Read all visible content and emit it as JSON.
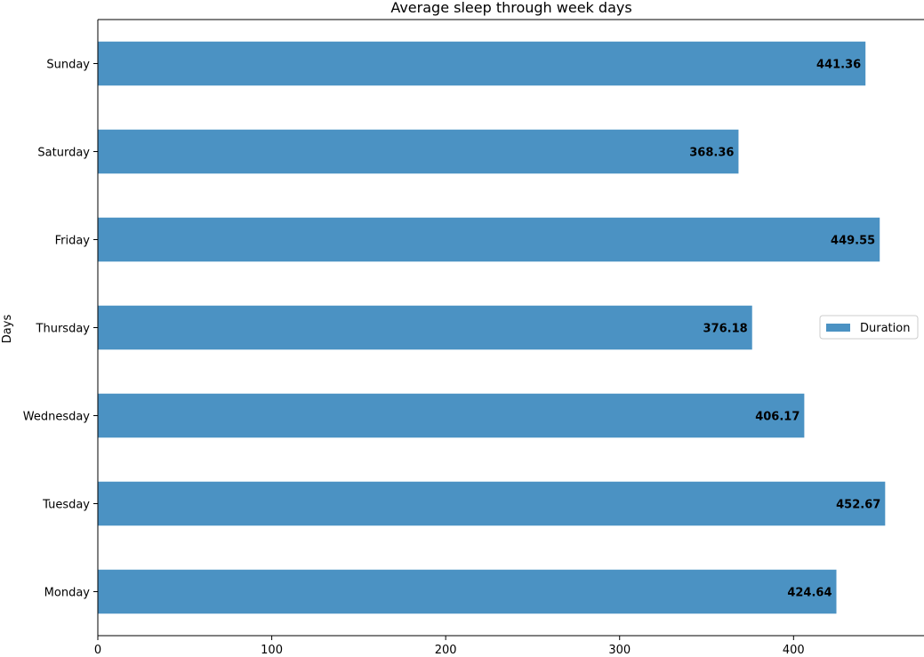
{
  "chart_data": {
    "type": "bar",
    "orientation": "horizontal",
    "title": "Average sleep through week days",
    "xlabel": "",
    "ylabel": "Days",
    "categories": [
      "Monday",
      "Tuesday",
      "Wednesday",
      "Thursday",
      "Friday",
      "Saturday",
      "Sunday"
    ],
    "series": [
      {
        "name": "Duration",
        "values": [
          424.64,
          452.67,
          406.17,
          376.18,
          449.55,
          368.36,
          441.36
        ],
        "data_labels": [
          "424.64",
          "452.67",
          "406.17",
          "376.18",
          "449.55",
          "368.36",
          "441.36"
        ]
      }
    ],
    "xlim": [
      0,
      475
    ],
    "xticks": [
      0,
      100,
      200,
      300,
      400
    ],
    "xtick_labels": [
      "0",
      "100",
      "200",
      "300",
      "400"
    ],
    "grid": false,
    "legend_position": "center-right",
    "bar_color": "#4b92c3"
  }
}
